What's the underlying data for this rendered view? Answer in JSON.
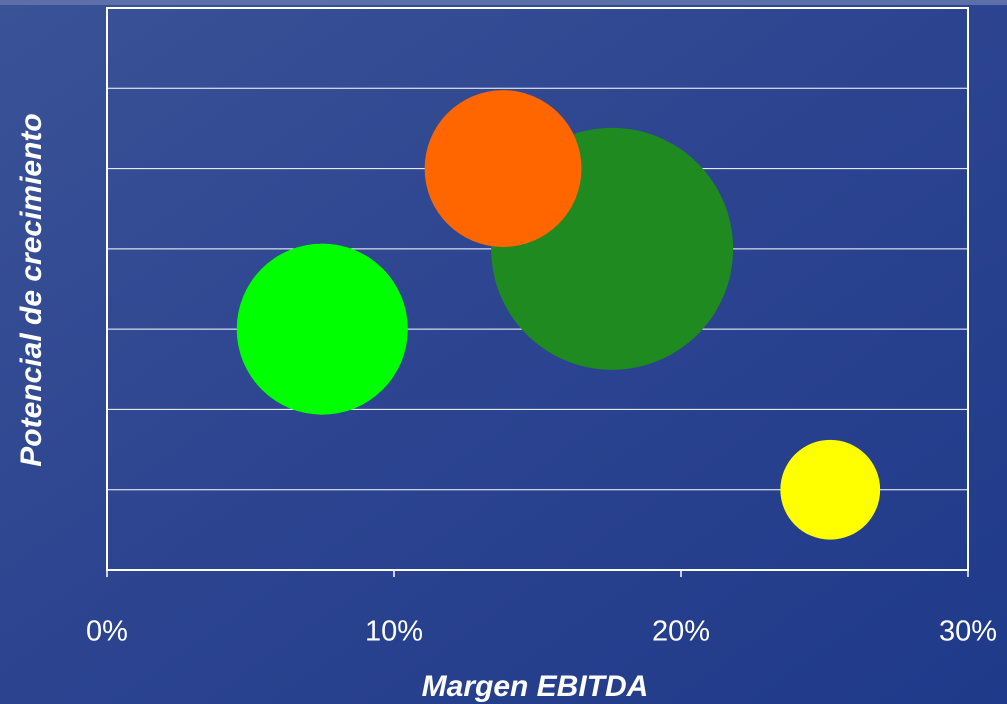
{
  "chart_data": {
    "type": "bubble",
    "x_label": "Margen EBITDA",
    "y_label": "Potencial de crecimiento",
    "xlim": [
      0,
      30
    ],
    "xticks": [
      {
        "value": 0,
        "label": "0%"
      },
      {
        "value": 10,
        "label": "10%"
      },
      {
        "value": 20,
        "label": "20%"
      },
      {
        "value": 30,
        "label": "30%"
      }
    ],
    "ylim": [
      0,
      7
    ],
    "yticks": [
      1,
      2,
      3,
      4,
      5,
      6
    ],
    "grid": true,
    "points": [
      {
        "x": 7.5,
        "y": 3,
        "size": 50,
        "color": "#00ff00"
      },
      {
        "x": 17.6,
        "y": 4,
        "size": 100,
        "color": "#1f8a1f"
      },
      {
        "x": 13.8,
        "y": 5,
        "size": 42,
        "color": "#ff6600"
      },
      {
        "x": 25.2,
        "y": 1,
        "size": 17,
        "color": "#ffff00"
      }
    ]
  }
}
